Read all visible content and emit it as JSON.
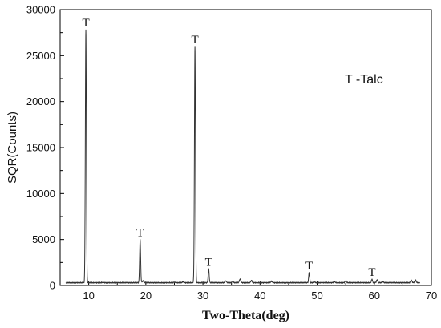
{
  "chart_data": {
    "type": "line",
    "xlabel": "Two-Theta(deg)",
    "ylabel": "SQR(Counts)",
    "xlim": [
      5,
      70
    ],
    "ylim": [
      0,
      30000
    ],
    "x_ticks": [
      10,
      20,
      30,
      40,
      50,
      60,
      70
    ],
    "y_ticks": [
      0,
      5000,
      10000,
      15000,
      20000,
      25000,
      30000
    ],
    "annotation": "T -Talc",
    "grid": false,
    "line_color": "#333333",
    "baseline": 300,
    "peaks": [
      {
        "x": 9.5,
        "y": 27800,
        "label": "T"
      },
      {
        "x": 19.0,
        "y": 5000,
        "label": "T"
      },
      {
        "x": 28.6,
        "y": 26000,
        "label": "T"
      },
      {
        "x": 31.0,
        "y": 1800,
        "label": "T"
      },
      {
        "x": 48.6,
        "y": 1400,
        "label": "T"
      },
      {
        "x": 59.6,
        "y": 700,
        "label": "T"
      }
    ],
    "minor_peaks": [
      {
        "x": 12.5,
        "y": 350
      },
      {
        "x": 19.5,
        "y": 500
      },
      {
        "x": 25.0,
        "y": 350
      },
      {
        "x": 26.5,
        "y": 400
      },
      {
        "x": 34.0,
        "y": 500
      },
      {
        "x": 35.2,
        "y": 450
      },
      {
        "x": 36.5,
        "y": 700
      },
      {
        "x": 38.5,
        "y": 550
      },
      {
        "x": 42.0,
        "y": 450
      },
      {
        "x": 49.5,
        "y": 400
      },
      {
        "x": 53.0,
        "y": 450
      },
      {
        "x": 55.0,
        "y": 500
      },
      {
        "x": 60.5,
        "y": 600
      },
      {
        "x": 61.5,
        "y": 400
      },
      {
        "x": 66.5,
        "y": 550
      },
      {
        "x": 67.2,
        "y": 600
      }
    ]
  }
}
